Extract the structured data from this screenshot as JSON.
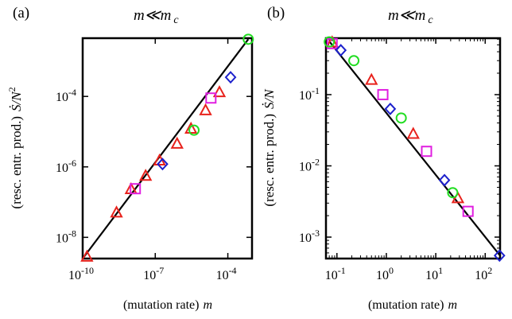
{
  "chart_data": [
    {
      "type": "scatter",
      "panel_label": "(a)",
      "title": "m≪m c",
      "title_main": "m≪m",
      "title_sub": "c",
      "xlabel": "(mutation rate)",
      "xlabel_var": "m",
      "ylabel": "(resc. entr. prod.)",
      "ylabel_var": "Ṡ/N",
      "ylabel_exp": "2",
      "xscale": "log",
      "yscale": "log",
      "xlim": [
        1e-10,
        0.001
      ],
      "ylim": [
        2.5e-09,
        0.0045
      ],
      "x_ticks": [
        {
          "value": 1e-10,
          "base": "10",
          "exp": "-10"
        },
        {
          "value": 1e-07,
          "base": "10",
          "exp": "-7"
        },
        {
          "value": 0.0001,
          "base": "10",
          "exp": "-4"
        }
      ],
      "y_ticks": [
        {
          "value": 1e-08,
          "base": "10",
          "exp": "-8"
        },
        {
          "value": 1e-06,
          "base": "10",
          "exp": "-6"
        },
        {
          "value": 0.0001,
          "base": "10",
          "exp": "-4"
        }
      ],
      "line": {
        "x": [
          1e-10,
          0.0007
        ],
        "y": [
          2.5e-09,
          0.0042
        ],
        "color": "#000000"
      },
      "series": [
        {
          "marker": "triangle",
          "color": "#e8221c",
          "x": [
            1.5e-10,
            2.5e-09,
            1e-08,
            4e-08,
            1.5e-07,
            8e-07,
            3e-06,
            1.2e-05,
            4.5e-05
          ],
          "y": [
            2.8e-09,
            5e-08,
            2.3e-07,
            5.5e-07,
            1.5e-06,
            4.5e-06,
            1.2e-05,
            4e-05,
            0.00013
          ]
        },
        {
          "marker": "square",
          "color": "#e020e0",
          "x": [
            1.5e-08,
            2e-05
          ],
          "y": [
            2.4e-07,
            9e-05
          ]
        },
        {
          "marker": "diamond",
          "color": "#1c20cc",
          "x": [
            2e-07,
            0.00013
          ],
          "y": [
            1.2e-06,
            0.00035
          ]
        },
        {
          "marker": "circle",
          "color": "#22dd22",
          "x": [
            4e-06,
            0.0007
          ],
          "y": [
            1.1e-05,
            0.0042
          ]
        }
      ]
    },
    {
      "type": "scatter",
      "panel_label": "(b)",
      "title": "m≪m c",
      "title_main": "m≪m",
      "title_sub": "c",
      "xlabel": "(mutation rate)",
      "xlabel_var": "m",
      "ylabel": "(resc. entr. prod.)",
      "ylabel_var": "Ṡ/N",
      "xscale": "log",
      "yscale": "log",
      "xlim": [
        0.06,
        200
      ],
      "ylim": [
        0.0005,
        0.62
      ],
      "x_ticks": [
        {
          "value": 0.1,
          "base": "10",
          "exp": "-1"
        },
        {
          "value": 1,
          "base": "10",
          "exp": "0"
        },
        {
          "value": 10,
          "base": "10",
          "exp": "1"
        },
        {
          "value": 100,
          "base": "10",
          "exp": "2"
        }
      ],
      "y_ticks": [
        {
          "value": 0.1,
          "base": "10",
          "exp": "-1"
        },
        {
          "value": 0.01,
          "base": "10",
          "exp": "-2"
        },
        {
          "value": 0.001,
          "base": "10",
          "exp": "-3"
        }
      ],
      "line": {
        "x": [
          0.07,
          200
        ],
        "y": [
          0.56,
          0.00055
        ],
        "color": "#000000"
      },
      "series": [
        {
          "marker": "triangle",
          "color": "#e8221c",
          "x": [
            0.08,
            0.5,
            3.5,
            28
          ],
          "y": [
            0.54,
            0.16,
            0.028,
            0.0035
          ]
        },
        {
          "marker": "square",
          "color": "#e020e0",
          "x": [
            0.08,
            0.85,
            6.5,
            45
          ],
          "y": [
            0.52,
            0.1,
            0.016,
            0.0023
          ]
        },
        {
          "marker": "diamond",
          "color": "#1c20cc",
          "x": [
            0.12,
            1.2,
            15,
            195
          ],
          "y": [
            0.42,
            0.063,
            0.0063,
            0.00055
          ]
        },
        {
          "marker": "circle",
          "color": "#22dd22",
          "x": [
            0.07,
            0.22,
            2,
            22
          ],
          "y": [
            0.55,
            0.3,
            0.047,
            0.0042
          ]
        }
      ]
    }
  ]
}
